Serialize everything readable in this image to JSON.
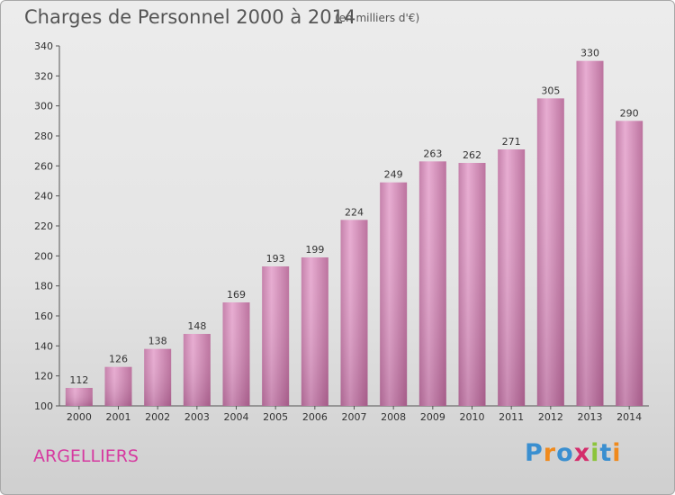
{
  "title": "Charges de Personnel 2000 à 2014",
  "subtitle": "(en milliers d'€)",
  "city": "ARGELLIERS",
  "logo": {
    "text": "Proxiti",
    "letters": [
      "P",
      "r",
      "o",
      "x",
      "i",
      "t",
      "i"
    ],
    "colors": [
      "#3a8fd0",
      "#f08a1c",
      "#3a8fd0",
      "#d42d6b",
      "#8cc43c",
      "#3a8fd0",
      "#f08a1c"
    ]
  },
  "colors": {
    "bar": "#d990bd",
    "axis": "#555555",
    "text": "#333333",
    "accent": "#d63aa0"
  },
  "chart_data": {
    "type": "bar",
    "categories": [
      "2000",
      "2001",
      "2002",
      "2003",
      "2004",
      "2005",
      "2006",
      "2007",
      "2008",
      "2009",
      "2010",
      "2011",
      "2012",
      "2013",
      "2014"
    ],
    "values": [
      112,
      126,
      138,
      148,
      169,
      193,
      199,
      224,
      249,
      263,
      262,
      271,
      305,
      330,
      290
    ],
    "title": "Charges de Personnel 2000 à 2014",
    "ylim": [
      100,
      340
    ],
    "yticks": [
      100,
      120,
      140,
      160,
      180,
      200,
      220,
      240,
      260,
      280,
      300,
      320,
      340
    ],
    "grid": false
  }
}
